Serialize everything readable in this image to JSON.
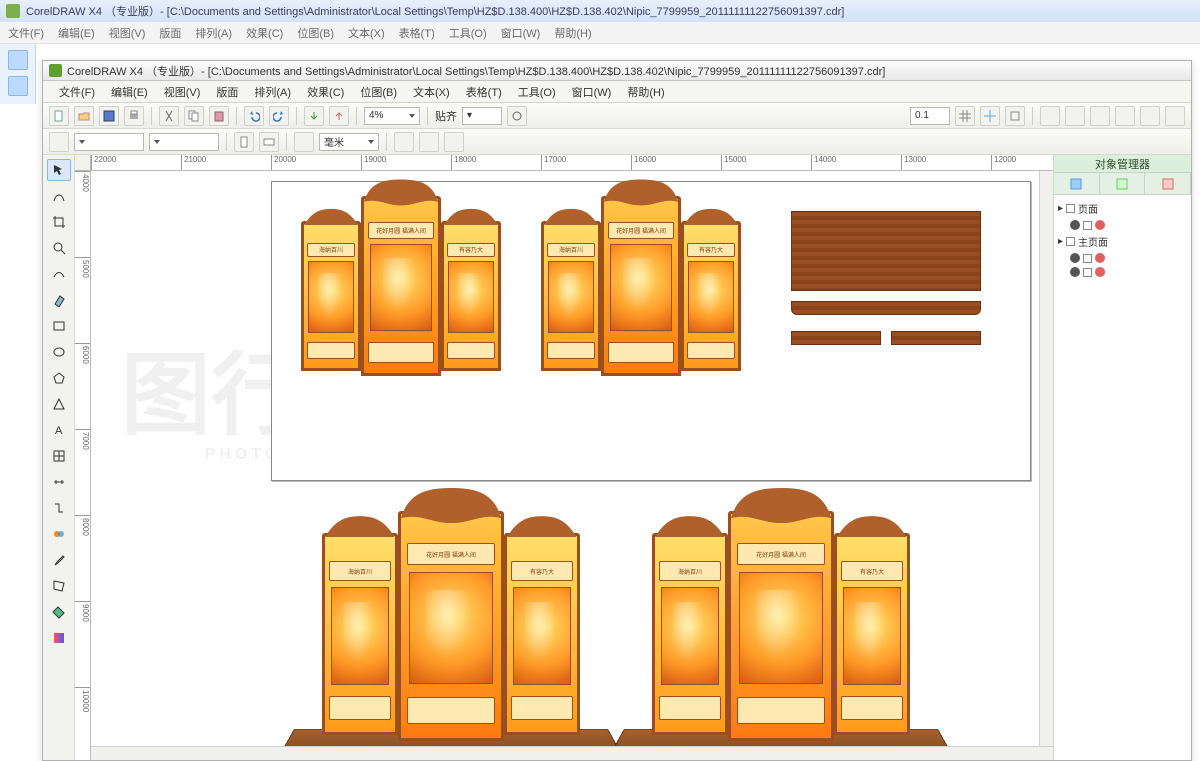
{
  "outer": {
    "title": "CorelDRAW X4 （专业版）- [C:\\Documents and Settings\\Administrator\\Local Settings\\Temp\\HZ$D.138.400\\HZ$D.138.402\\Nipic_7799959_20111111122756091397.cdr]",
    "menus": [
      "文件(F)",
      "编辑(E)",
      "视图(V)",
      "版面",
      "排列(A)",
      "效果(C)",
      "位图(B)",
      "文本(X)",
      "表格(T)",
      "工具(O)",
      "窗口(W)",
      "帮助(H)"
    ]
  },
  "inner": {
    "title": "CorelDRAW X4 （专业版）- [C:\\Documents and Settings\\Administrator\\Local Settings\\Temp\\HZ$D.138.400\\HZ$D.138.402\\Nipic_7799959_20111111122756091397.cdr]",
    "menus": [
      "文件(F)",
      "编辑(E)",
      "视图(V)",
      "版面",
      "排列(A)",
      "效果(C)",
      "位图(B)",
      "文本(X)",
      "表格(T)",
      "工具(O)",
      "窗口(W)",
      "帮助(H)"
    ]
  },
  "toolbar": {
    "zoom": "4%",
    "paste_label": "贴齐",
    "snap_value": "0.1",
    "ruler_unit": "毫米"
  },
  "ruler_h": [
    "22000",
    "21000",
    "20000",
    "19000",
    "18000",
    "17000",
    "16000",
    "15000",
    "14000",
    "13000",
    "12000"
  ],
  "ruler_v": [
    "4000",
    "5000",
    "6000",
    "7000",
    "8000",
    "9000",
    "10000"
  ],
  "docker": {
    "title": "对象管理器",
    "layers": [
      {
        "name": "页面",
        "icon": "page"
      },
      {
        "name": "主页面",
        "icon": "master"
      }
    ]
  },
  "artwork": {
    "panel_header_left": "海纳百川",
    "panel_header_center": "花好月圆  福满人间",
    "panel_header_right": "有容乃大",
    "colors": {
      "wood": "#9b4e1e",
      "gold1": "#ffdf6a",
      "gold2": "#ff9a1a",
      "crown": "#b0602a"
    }
  },
  "watermark": {
    "main": "图行天下",
    "sub": "PHOTOPHOTO.CN"
  }
}
